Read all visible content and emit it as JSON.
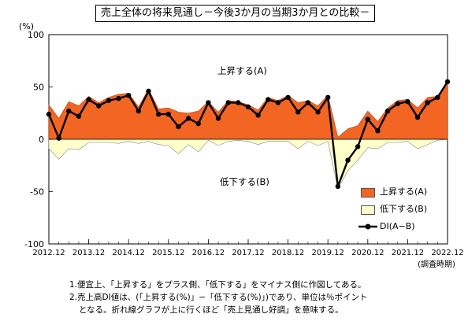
{
  "chart_data": {
    "type": "area",
    "title": "売上全体の将来見通し－今後3か月の当期3か月との比較－",
    "unit_label": "(%)",
    "x_axis_note": "(調査時期)",
    "ylim": [
      -100,
      100
    ],
    "y_ticks": [
      100,
      50,
      0,
      -50,
      -100
    ],
    "x_tick_labels": [
      "2012.12",
      "2013.12",
      "2014.12",
      "2015.12",
      "2016.12",
      "2017.12",
      "2018.12",
      "2019.12",
      "2020.12",
      "2021.12",
      "2022.12"
    ],
    "x_tick_index": [
      0,
      4,
      8,
      12,
      16,
      20,
      24,
      28,
      32,
      36,
      40
    ],
    "up_label": "上昇する(A)",
    "down_label": "低下する(B)",
    "series": [
      {
        "name": "上昇する(A)",
        "color": "#f26522",
        "values": [
          33,
          20,
          36,
          32,
          41,
          35,
          40,
          43,
          44,
          31,
          48,
          29,
          30,
          26,
          25,
          27,
          36,
          26,
          37,
          36,
          33,
          28,
          40,
          37,
          42,
          35,
          37,
          32,
          42,
          2,
          10,
          13,
          27,
          17,
          30,
          37,
          38,
          30,
          40,
          41,
          55
        ]
      },
      {
        "name": "低下する(B)",
        "color": "#ffffcc",
        "values": [
          -9,
          -19,
          -9,
          -10,
          -3,
          -3,
          -3,
          -4,
          -2,
          -4,
          -2,
          -5,
          -6,
          -14,
          -5,
          -12,
          -1,
          -6,
          -2,
          -1,
          -2,
          -5,
          -2,
          -2,
          -2,
          -9,
          -2,
          -6,
          -2,
          -47,
          -30,
          -20,
          -8,
          -9,
          -3,
          -3,
          -2,
          -9,
          -5,
          -1,
          0
        ]
      },
      {
        "name": "DI(A−B)",
        "color": "#000000",
        "values": [
          24,
          1,
          27,
          22,
          38,
          32,
          37,
          39,
          42,
          27,
          46,
          24,
          24,
          12,
          20,
          15,
          35,
          20,
          35,
          35,
          31,
          23,
          38,
          35,
          40,
          26,
          35,
          26,
          40,
          -45,
          -20,
          -7,
          19,
          8,
          27,
          34,
          36,
          21,
          35,
          40,
          55
        ]
      }
    ],
    "legend_position": "bottom-right",
    "grid": false
  },
  "legend": {
    "items": [
      {
        "label": "上昇する(A)"
      },
      {
        "label": "低下する(B)"
      },
      {
        "label": "DI(A−B)"
      }
    ]
  },
  "notes": {
    "line1": "1.便宜上、「上昇する」をプラス側、「低下する」をマイナス側に作図してある。",
    "line2": "2.売上高DI値は、(「上昇する(%)」−「低下する(%)」)であり、単位は％ポイント",
    "line3": "となる。折れ線グラフが上に行くほど「売上見通し好調」を意味する。"
  }
}
